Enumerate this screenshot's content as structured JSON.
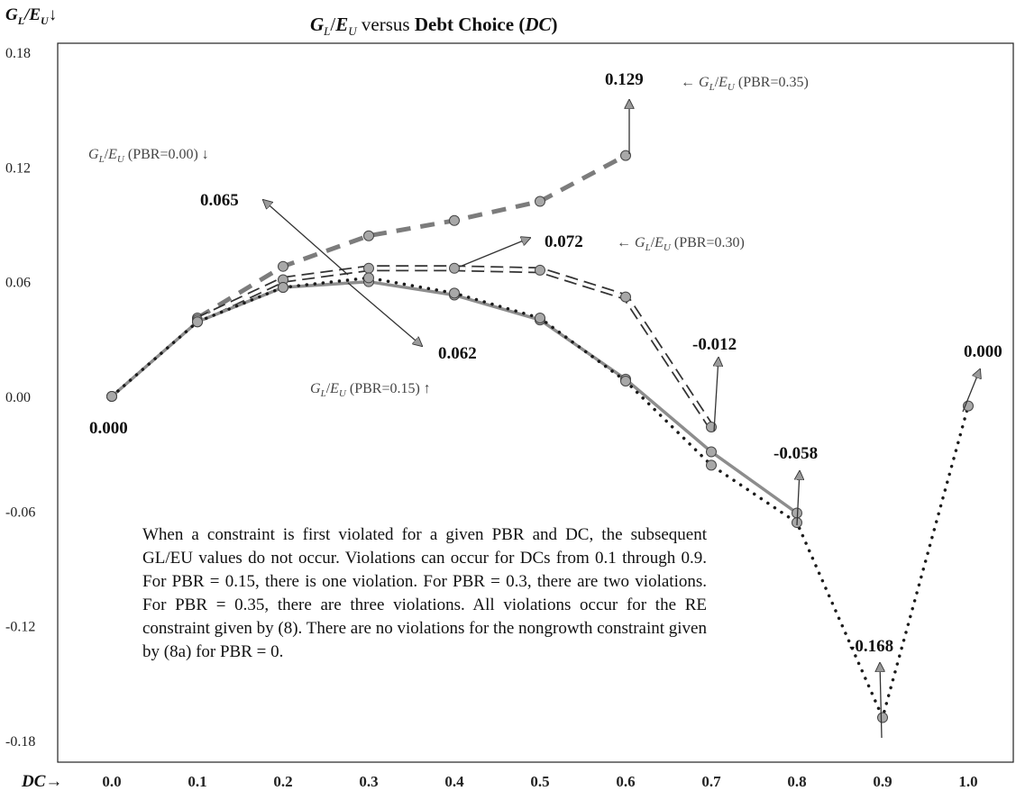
{
  "chart_data": {
    "type": "line",
    "title": "G_L/E_U versus Debt Choice (DC)",
    "title_parts": {
      "g": "G",
      "l": "L",
      "slash": "/",
      "e": "E",
      "u": "U",
      "versus": " versus ",
      "debt": "Debt Choice ",
      "paren_open": "(",
      "dc": "DC",
      "paren_close": ")"
    },
    "ylabel": "G_L/E_U↓",
    "xlabel": "DC→",
    "ylim": [
      -0.18,
      0.18
    ],
    "xlim": [
      0.0,
      1.0
    ],
    "y_ticks": [
      "0.18",
      "0.12",
      "0.06",
      "0.00",
      "-0.06",
      "-0.12",
      "-0.18"
    ],
    "x_ticks": [
      "0.0",
      "0.1",
      "0.2",
      "0.3",
      "0.4",
      "0.5",
      "0.6",
      "0.7",
      "0.8",
      "0.9",
      "1.0"
    ],
    "grid": false,
    "series": [
      {
        "name": "G_L/E_U (PBR=0.00)",
        "style": "dotted",
        "x": [
          0.0,
          0.1,
          0.2,
          0.3,
          0.4,
          0.5,
          0.6,
          0.7,
          0.8,
          0.9,
          1.0
        ],
        "y": [
          0.0,
          0.039,
          0.057,
          0.062,
          0.054,
          0.041,
          0.008,
          -0.036,
          -0.066,
          -0.168,
          -0.005
        ]
      },
      {
        "name": "G_L/E_U (PBR=0.15)",
        "style": "solid",
        "x": [
          0.0,
          0.1,
          0.2,
          0.3,
          0.4,
          0.5,
          0.6,
          0.7,
          0.8
        ],
        "y": [
          0.0,
          0.039,
          0.057,
          0.06,
          0.053,
          0.04,
          0.009,
          -0.029,
          -0.061
        ]
      },
      {
        "name": "G_L/E_U (PBR=0.30)",
        "style": "dashed-outline",
        "x": [
          0.1,
          0.2,
          0.3,
          0.4,
          0.5,
          0.6,
          0.7
        ],
        "y": [
          0.04,
          0.061,
          0.067,
          0.067,
          0.066,
          0.052,
          -0.016
        ]
      },
      {
        "name": "G_L/E_U (PBR=0.35)",
        "style": "dashed",
        "x": [
          0.1,
          0.2,
          0.3,
          0.4,
          0.5,
          0.6
        ],
        "y": [
          0.041,
          0.068,
          0.084,
          0.092,
          0.102,
          0.126
        ]
      }
    ],
    "data_labels": [
      "0.129",
      "0.065",
      "0.072",
      "0.062",
      "0.000",
      "-0.012",
      "-0.058",
      "-0.168",
      "0.000"
    ],
    "series_labels": {
      "pbr035": {
        "g": "G",
        "l": "L",
        "e": "E",
        "u": "U",
        "pre": "← ",
        "rest": " (PBR=0.35)"
      },
      "pbr000": {
        "g": "G",
        "l": "L",
        "e": "E",
        "u": "U",
        "pre": "",
        "rest": " (PBR=0.00) ↓"
      },
      "pbr030": {
        "g": "G",
        "l": "L",
        "e": "E",
        "u": "U",
        "pre": "← ",
        "rest": " (PBR=0.30)"
      },
      "pbr015": {
        "g": "G",
        "l": "L",
        "e": "E",
        "u": "U",
        "pre": "",
        "rest": " (PBR=0.15) ↑"
      }
    },
    "note": "When a constraint is first violated for a given PBR and DC, the subsequent GL/EU values do not occur. Violations can occur for DCs from 0.1 through 0.9. For PBR = 0.15, there is one violation. For PBR = 0.3, there are two violations. For PBR = 0.35, there are three violations. All violations occur for the RE constraint given by (8). There are no violations for the nongrowth constraint given by (8a) for PBR = 0."
  }
}
